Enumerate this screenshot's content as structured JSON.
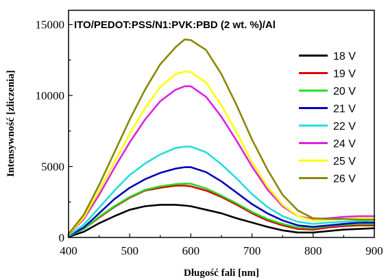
{
  "chart_data": {
    "type": "line",
    "title": "ITO/PEDOT:PSS/N1:PVK:PBD (2 wt. %)/Al",
    "xlabel": "Długość fali [nm]",
    "ylabel": "Intensywność [zliczenia]",
    "xlim": [
      400,
      900
    ],
    "ylim": [
      0,
      16000
    ],
    "x_ticks": [
      400,
      500,
      600,
      700,
      800,
      900
    ],
    "y_ticks": [
      0,
      5000,
      10000,
      15000
    ],
    "x_tick_labels": [
      "400",
      "500",
      "600",
      "700",
      "800",
      "900"
    ],
    "y_tick_labels": [
      "0",
      "5000",
      "10000",
      "15000"
    ],
    "legend_position": "right",
    "x": [
      400,
      425,
      450,
      475,
      500,
      525,
      550,
      575,
      590,
      600,
      625,
      650,
      675,
      700,
      725,
      750,
      775,
      800,
      825,
      850,
      875,
      900
    ],
    "series": [
      {
        "name": "18 V",
        "color": "#000000",
        "values": [
          50,
          400,
          1000,
          1500,
          1950,
          2200,
          2300,
          2300,
          2250,
          2200,
          1950,
          1700,
          1350,
          1050,
          750,
          500,
          350,
          350,
          450,
          550,
          600,
          650
        ]
      },
      {
        "name": "19 V",
        "color": "#e00000",
        "values": [
          80,
          600,
          1400,
          2150,
          2800,
          3300,
          3500,
          3650,
          3650,
          3600,
          3300,
          2850,
          2300,
          1700,
          1200,
          850,
          600,
          550,
          700,
          800,
          850,
          850
        ]
      },
      {
        "name": "20 V",
        "color": "#22dd22",
        "values": [
          90,
          600,
          1450,
          2200,
          2850,
          3350,
          3600,
          3750,
          3800,
          3780,
          3450,
          2950,
          2400,
          1800,
          1300,
          950,
          700,
          650,
          800,
          900,
          950,
          950
        ]
      },
      {
        "name": "21 V",
        "color": "#0000bb",
        "values": [
          100,
          700,
          1700,
          2700,
          3500,
          4100,
          4550,
          4850,
          4950,
          4950,
          4600,
          3950,
          3150,
          2350,
          1700,
          1200,
          850,
          750,
          850,
          950,
          1050,
          1050
        ]
      },
      {
        "name": "22 V",
        "color": "#22dddd",
        "values": [
          120,
          900,
          2100,
          3300,
          4400,
          5200,
          5850,
          6300,
          6400,
          6400,
          6000,
          5150,
          4150,
          3050,
          2150,
          1500,
          1100,
          950,
          1050,
          1100,
          1150,
          1200
        ]
      },
      {
        "name": "24 V",
        "color": "#dd22dd",
        "values": [
          200,
          1300,
          3000,
          4900,
          6700,
          8300,
          9600,
          10400,
          10650,
          10650,
          9900,
          8500,
          6800,
          5000,
          3400,
          2200,
          1500,
          1300,
          1350,
          1450,
          1500,
          1500
        ]
      },
      {
        "name": "25 V",
        "color": "#ffff00",
        "values": [
          220,
          1400,
          3300,
          5300,
          7300,
          9100,
          10600,
          11500,
          11700,
          11650,
          10900,
          9300,
          7400,
          5300,
          3600,
          2300,
          1500,
          1200,
          1250,
          1300,
          1350,
          1350
        ]
      },
      {
        "name": "26 V",
        "color": "#888800",
        "values": [
          250,
          1600,
          3700,
          6000,
          8300,
          10400,
          12200,
          13400,
          13950,
          13900,
          13200,
          11500,
          9300,
          6900,
          4800,
          3000,
          1900,
          1350,
          1300,
          1300,
          1250,
          1250
        ]
      }
    ]
  }
}
